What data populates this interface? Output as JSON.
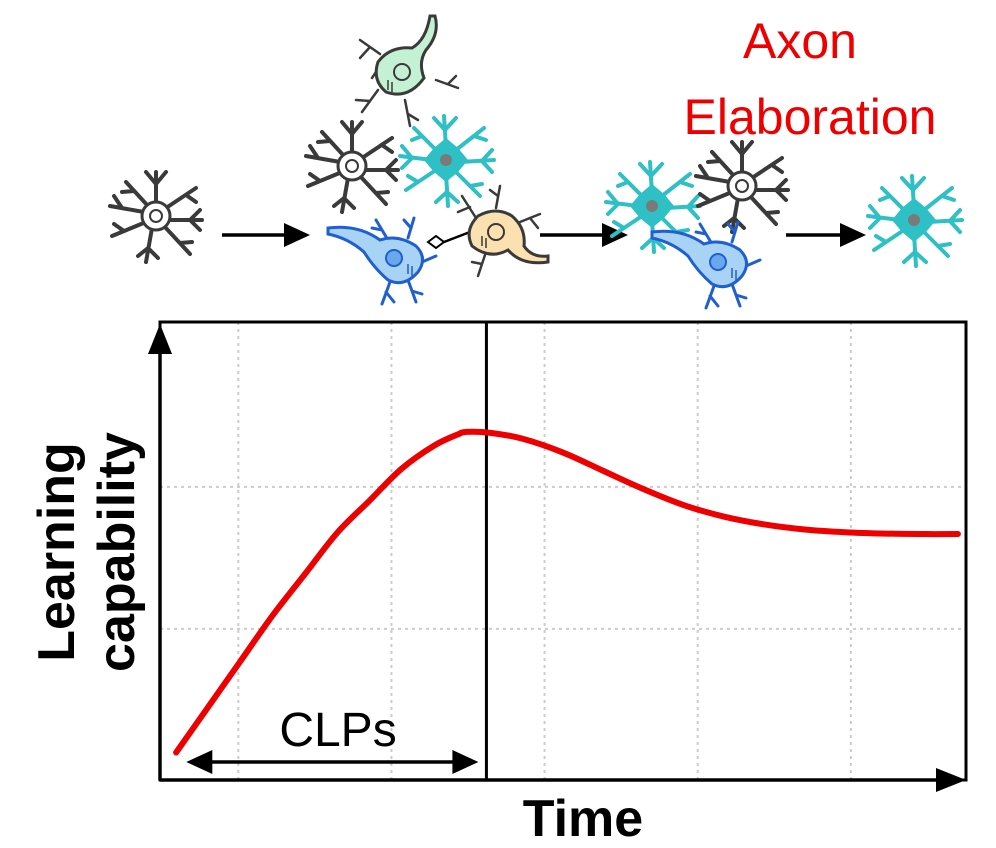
{
  "annotation": {
    "line1": "Axon",
    "line2": "Elaboration",
    "color": "#ee0000"
  },
  "chart_data": {
    "type": "line",
    "title": "",
    "xlabel": "Time",
    "ylabel_line1": "Learning",
    "ylabel_line2": "capability",
    "xlim": [
      0,
      1
    ],
    "ylim": [
      0,
      1
    ],
    "grid": true,
    "series": [
      {
        "color": "#ee0000",
        "x": [
          0.02,
          0.06,
          0.1,
          0.14,
          0.18,
          0.22,
          0.26,
          0.3,
          0.34,
          0.37,
          0.38,
          0.41,
          0.45,
          0.5,
          0.55,
          0.6,
          0.65,
          0.7,
          0.75,
          0.8,
          0.85,
          0.9,
          0.95,
          0.99
        ],
        "y": [
          0.06,
          0.16,
          0.26,
          0.36,
          0.45,
          0.54,
          0.61,
          0.68,
          0.73,
          0.755,
          0.76,
          0.758,
          0.745,
          0.715,
          0.675,
          0.635,
          0.6,
          0.575,
          0.558,
          0.547,
          0.541,
          0.538,
          0.537,
          0.537
        ]
      }
    ],
    "divider_x": 0.405,
    "annotations": [
      {
        "text": "CLPs",
        "from_x": 0.05,
        "to_x": 0.4
      }
    ]
  },
  "neurons": {
    "stage1": "grey-star-neuron",
    "stage2": [
      "green-pyramidal-neuron",
      "grey-star-neuron",
      "cyan-star-neuron",
      "blue-pyramidal-neuron",
      "orange-pyramidal-neuron"
    ],
    "stage3": [
      "cyan-star-neuron",
      "grey-star-neuron",
      "blue-pyramidal-neuron"
    ],
    "stage4": "cyan-star-neuron",
    "colors": {
      "grey": "#3a3a3a",
      "cyan": "#2ec0c4",
      "blue_fill": "#a9d3f5",
      "blue_stroke": "#1f5fd0",
      "green_fill": "#c4f1d4",
      "orange_fill": "#fbe0b0"
    }
  }
}
